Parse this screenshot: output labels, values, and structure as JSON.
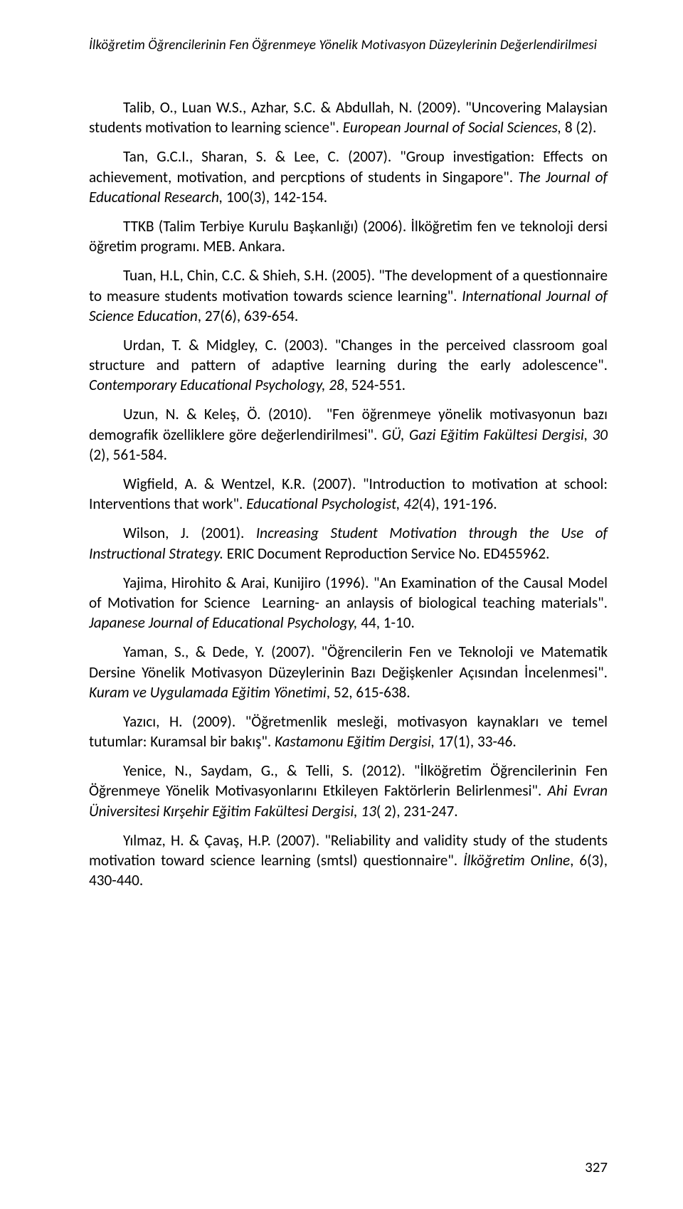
{
  "runningHead": "İlköğretim Öğrencilerinin Fen Öğrenmeye Yönelik Motivasyon Düzeylerinin Değerlendirilmesi",
  "pageNumber": "327",
  "refs": [
    {
      "pre": "Talib, O., Luan W.S., Azhar, S.C. & Abdullah, N. (2009). \"Uncovering Malaysian students motivation to learning science\". ",
      "ital": "European Journal of Social Sciences,",
      "post": " 8 (2)."
    },
    {
      "pre": "Tan, G.C.I., Sharan, S. & Lee, C. (2007). \"Group investigation: Effects on achievement, motivation, and percptions of students in Singapore\". ",
      "ital": "The Journal of Educational Research,",
      "post": " 100(3), 142-154."
    },
    {
      "pre": "TTKB (Talim Terbiye Kurulu Başkanlığı) (2006). İlköğretim fen ve teknoloji dersi öğretim programı. MEB. Ankara.",
      "ital": "",
      "post": ""
    },
    {
      "pre": "Tuan, H.L, Chin, C.C. & Shieh, S.H. (2005). \"The development of a questionnaire to measure students motivation towards science learning\". ",
      "ital": "International Journal of Science Education",
      "post": ", 27(6), 639-654."
    },
    {
      "pre": "Urdan, T. & Midgley, C. (2003). \"Changes in the perceived classroom goal structure and pattern of adaptive learning during the early adolescence\". ",
      "ital": "Contemporary Educational Psychology, 28",
      "post": ", 524-551."
    },
    {
      "pre": "Uzun, N. & Keleş, Ö. (2010).  \"Fen öğrenmeye yönelik motivasyonun bazı demografik özelliklere göre değerlendirilmesi\". ",
      "ital": "GÜ, Gazi Eğitim Fakültesi Dergisi, 30",
      "post": " (2), 561-584."
    },
    {
      "pre": "Wigfield, A. & Wentzel, K.R. (2007). \"Introduction to motivation at school: Interventions that work\". ",
      "ital": "Educational Psychologist, 42",
      "post": "(4), 191-196."
    },
    {
      "pre": "Wilson, J. (2001). ",
      "ital": "Increasing Student Motivation through the Use of Instructional Strategy.",
      "post": " ERIC Document Reproduction Service No. ED455962."
    },
    {
      "pre": "Yajima, Hirohito & Arai, Kunijiro (1996). \"An Examination of the Causal Model of Motivation for Science  Learning- an anlaysis of biological teaching materials\". ",
      "ital": "Japanese Journal of Educational Psychology,",
      "post": " 44, 1-10."
    },
    {
      "pre": "Yaman, S., & Dede, Y. (2007). \"Öğrencilerin Fen ve Teknoloji ve Matematik Dersine Yönelik Motivasyon Düzeylerinin Bazı Değişkenler Açısından İncelenmesi\". ",
      "ital": "Kuram ve Uygulamada Eğitim Yönetimi",
      "post": ", 52, 615-638."
    },
    {
      "pre": "Yazıcı, H. (2009). \"Öğretmenlik mesleği, motivasyon kaynakları ve temel tutumlar: Kuramsal bir bakış\". ",
      "ital": "Kastamonu Eğitim Dergisi,",
      "post": " 17(1), 33-46."
    },
    {
      "pre": "Yenice, N., Saydam, G., & Telli, S. (2012). \"İlköğretim Öğrencilerinin Fen Öğrenmeye Yönelik Motivasyonlarını Etkileyen Faktörlerin Belirlenmesi\". ",
      "ital": "Ahi Evran Üniversitesi Kırşehir Eğitim Fakültesi Dergisi, 13",
      "post": "( 2), 231-247."
    },
    {
      "pre": "Yılmaz, H. & Çavaş, H.P. (2007). \"Reliability and validity study of the students motivation toward science learning (smtsl) questionnaire\". ",
      "ital": "İlköğretim Online",
      "post": ", 6(3), 430-440."
    }
  ]
}
